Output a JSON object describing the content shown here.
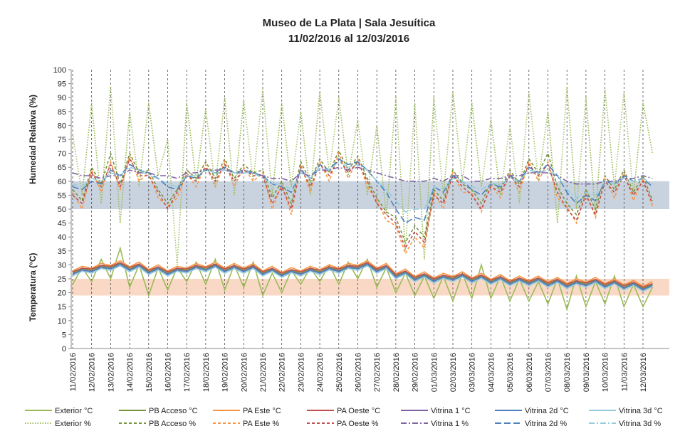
{
  "chart_data": {
    "type": "line",
    "title": "Museo de La Plata | Sala Jesuítica",
    "subtitle": "11/02/2016 al 12/03/2016",
    "y_labels": [
      "Humedad Relativa (%)",
      "Temperatura (°C)"
    ],
    "ylim": [
      0,
      100
    ],
    "yticks": [
      0,
      5,
      10,
      15,
      20,
      25,
      30,
      35,
      40,
      45,
      50,
      55,
      60,
      65,
      70,
      75,
      80,
      85,
      90,
      95,
      100
    ],
    "bands": [
      {
        "from": 50,
        "to": 60,
        "color": "#c9d3df"
      },
      {
        "from": 19,
        "to": 25,
        "color": "#f9d9c6"
      }
    ],
    "categories": [
      "11/02/2016",
      null,
      "12/02/2016",
      null,
      "13/02/2016",
      null,
      "14/02/2016",
      null,
      "15/02/2016",
      null,
      "16/02/2016",
      null,
      "17/02/2016",
      null,
      "18/02/2016",
      null,
      "19/02/2016",
      null,
      "20/02/2016",
      null,
      "21/02/2016",
      null,
      "22/02/2016",
      null,
      "23/02/2016",
      null,
      "24/02/2016",
      null,
      "25/02/2016",
      null,
      "26/02/2016",
      null,
      "27/02/2016",
      null,
      "28/02/2016",
      null,
      "29/02/2016",
      null,
      "01/03/2016",
      null,
      "02/03/2016",
      null,
      "03/03/2016",
      null,
      "04/03/2016",
      null,
      "05/03/2016",
      null,
      "06/03/2016",
      null,
      "07/03/2016",
      null,
      "08/03/2016",
      null,
      "09/03/2016",
      null,
      "10/03/2016",
      null,
      "11/03/2016",
      null,
      "12/03/2016",
      null
    ],
    "series": [
      {
        "name": "Exterior °C",
        "color": "#9bbb59",
        "dash": "none",
        "values": [
          23,
          29,
          24,
          32,
          25,
          36,
          22,
          30,
          19,
          29,
          21,
          29,
          24,
          31,
          23,
          32,
          21,
          30,
          22,
          31,
          19,
          27,
          20,
          28,
          23,
          29,
          24,
          30,
          23,
          31,
          25,
          32,
          22,
          29,
          20,
          27,
          19,
          26,
          18,
          26,
          17,
          27,
          18,
          30,
          18,
          26,
          17,
          25,
          17,
          24,
          16,
          25,
          14,
          26,
          15,
          24,
          16,
          26,
          15,
          23,
          15,
          22
        ]
      },
      {
        "name": "PB Acceso °C",
        "color": "#77933c",
        "dash": "none",
        "values": [
          27,
          28.5,
          28,
          29.5,
          29,
          30.5,
          28.5,
          30,
          27.5,
          29,
          27,
          28.5,
          28,
          29.5,
          28.5,
          30,
          28,
          29.5,
          28,
          29.5,
          27,
          28.5,
          26.5,
          28,
          27,
          28.5,
          27.5,
          29,
          28,
          29.5,
          29,
          30.5,
          28,
          29.5,
          26,
          27.5,
          25,
          26.5,
          24.5,
          26,
          25,
          26.5,
          24.5,
          26,
          24,
          25.5,
          23.5,
          25,
          23.5,
          25,
          23,
          24.5,
          22.5,
          24,
          23,
          24.5,
          22.5,
          24,
          22,
          23.5,
          21.5,
          23
        ]
      },
      {
        "name": "PA Este °C",
        "color": "#f79646",
        "dash": "none",
        "values": [
          27.8,
          29.5,
          28.8,
          30.5,
          29.8,
          31.5,
          29.3,
          31,
          28.3,
          30,
          27.8,
          29.5,
          28.8,
          30.5,
          29.3,
          31,
          28.8,
          30.5,
          28.8,
          30.5,
          27.8,
          29.5,
          27.3,
          29,
          27.8,
          29.5,
          28.3,
          30,
          28.8,
          30.5,
          29.8,
          31.5,
          28.8,
          30.5,
          26.8,
          28.5,
          25.8,
          27.5,
          25.3,
          27,
          25.8,
          27.5,
          25.3,
          27,
          24.8,
          26.5,
          24.3,
          26,
          24.3,
          26,
          23.8,
          25.5,
          23.3,
          25,
          23.8,
          25.5,
          23.3,
          25,
          22.8,
          24.5,
          22.3,
          24
        ]
      },
      {
        "name": "PA Oeste °C",
        "color": "#c0504d",
        "dash": "none",
        "values": [
          27.5,
          28.8,
          28.5,
          29.8,
          29.5,
          30.8,
          29,
          30.3,
          28,
          29.3,
          27.5,
          28.8,
          28.5,
          29.8,
          29,
          30.3,
          28.5,
          29.8,
          28.5,
          29.8,
          27.5,
          28.8,
          27,
          28.3,
          27.5,
          28.8,
          28,
          29.3,
          28.5,
          29.8,
          29.5,
          30.8,
          28.5,
          29.8,
          26.5,
          27.8,
          25.5,
          26.8,
          25,
          26.3,
          25.5,
          26.8,
          25,
          26.3,
          24.5,
          25.8,
          24,
          25.3,
          24,
          25.3,
          23.5,
          24.8,
          23,
          24.3,
          23.5,
          24.8,
          23,
          24.3,
          22.5,
          23.8,
          22,
          23.3
        ]
      },
      {
        "name": "Vitrina 1 °C",
        "color": "#8064a2",
        "dash": "none",
        "values": [
          26.8,
          27.8,
          27.8,
          28.8,
          28.8,
          29.8,
          28.3,
          29.3,
          27.3,
          28.3,
          26.8,
          27.8,
          27.8,
          28.8,
          28.3,
          29.3,
          27.8,
          28.8,
          27.8,
          28.8,
          26.8,
          27.8,
          26.3,
          27.3,
          26.8,
          27.8,
          27.3,
          28.3,
          27.8,
          28.8,
          28.8,
          29.8,
          27.8,
          28.8,
          25.8,
          26.8,
          24.8,
          25.8,
          24.3,
          25.3,
          24.8,
          25.8,
          24.3,
          25.3,
          23.8,
          24.8,
          23.3,
          24.3,
          23.3,
          24.3,
          22.8,
          23.8,
          22.3,
          23.3,
          22.8,
          23.8,
          22.3,
          23.3,
          21.8,
          22.8,
          21.3,
          22.3
        ]
      },
      {
        "name": "Vitrina 2d °C",
        "color": "#4f81bd",
        "dash": "none",
        "values": [
          26.5,
          28.3,
          27.5,
          29.3,
          28.5,
          30.3,
          28,
          29.8,
          27,
          28.8,
          26.5,
          28.3,
          27.5,
          29.3,
          28,
          29.8,
          27.5,
          29.3,
          27.5,
          29.3,
          26.5,
          28.3,
          26,
          27.8,
          26.5,
          28.3,
          27,
          28.8,
          27.5,
          29.3,
          28.5,
          30.3,
          27.5,
          29.3,
          25.5,
          27.3,
          24.5,
          26.3,
          24,
          25.8,
          24.5,
          26.3,
          24,
          25.8,
          23.5,
          25.3,
          23,
          24.8,
          23,
          24.8,
          22.5,
          24.3,
          22,
          23.8,
          22.5,
          24.3,
          22,
          23.8,
          21.5,
          23.3,
          21,
          22.8
        ]
      },
      {
        "name": "Vitrina 3d °C",
        "color": "#93cddd",
        "dash": "none",
        "values": [
          26,
          27.7,
          27,
          28.7,
          28,
          29.7,
          27.5,
          29.2,
          26.5,
          28.2,
          26,
          27.7,
          27,
          28.7,
          27.5,
          29.2,
          27,
          28.7,
          27,
          28.7,
          26,
          27.7,
          25.5,
          27.2,
          26,
          27.7,
          26.5,
          28.2,
          27,
          28.7,
          28,
          29.7,
          27,
          28.7,
          25,
          26.7,
          24,
          25.7,
          23.5,
          25.2,
          24,
          25.7,
          23.5,
          25.2,
          23,
          24.7,
          22.5,
          24.2,
          22.5,
          24.2,
          22,
          23.7,
          21.5,
          23.2,
          22,
          23.7,
          21.5,
          23.2,
          21,
          22.7,
          20.5,
          22.2
        ]
      },
      {
        "name": "Exterior %",
        "color": "#9bbb59",
        "dash": "1.5 2",
        "values": [
          77,
          55,
          88,
          52,
          94,
          45,
          85,
          58,
          88,
          62,
          75,
          30,
          88,
          60,
          86,
          58,
          90,
          55,
          89,
          60,
          93,
          55,
          88,
          58,
          85,
          55,
          92,
          63,
          90,
          62,
          82,
          55,
          80,
          48,
          90,
          35,
          88,
          32,
          90,
          55,
          92,
          60,
          88,
          58,
          82,
          55,
          80,
          52,
          92,
          60,
          85,
          45,
          94,
          50,
          90,
          48,
          93,
          58,
          92,
          55,
          88,
          70
        ]
      },
      {
        "name": "PB Acceso %",
        "color": "#77933c",
        "dash": "4 3",
        "values": [
          57,
          53,
          65,
          59,
          70,
          59,
          70,
          63,
          64,
          57,
          52,
          57,
          64,
          61,
          67,
          61,
          68,
          61,
          66,
          63,
          64,
          54,
          60,
          52,
          67,
          60,
          68,
          63,
          71,
          64,
          69,
          61,
          54,
          49,
          47,
          38,
          44,
          40,
          57,
          53,
          64,
          59,
          57,
          52,
          60,
          57,
          64,
          59,
          68,
          63,
          70,
          58,
          52,
          48,
          57,
          50,
          62,
          57,
          64,
          56,
          62,
          53
        ]
      },
      {
        "name": "PA Este %",
        "color": "#f79646",
        "dash": "4 3",
        "values": [
          56,
          50,
          64,
          56,
          67,
          57,
          69,
          60,
          63,
          54,
          51,
          54,
          63,
          58,
          66,
          58,
          67,
          58,
          65,
          60,
          63,
          50,
          59,
          48,
          66,
          56,
          67,
          60,
          70,
          61,
          68,
          58,
          53,
          46,
          44,
          34,
          40,
          36,
          56,
          50,
          63,
          56,
          56,
          49,
          59,
          54,
          63,
          56,
          67,
          60,
          67,
          54,
          51,
          45,
          56,
          47,
          61,
          54,
          63,
          53,
          61,
          51
        ]
      },
      {
        "name": "PA Oeste %",
        "color": "#c0504d",
        "dash": "4 3",
        "values": [
          55,
          52,
          63,
          58,
          66,
          58,
          68,
          62,
          62,
          56,
          50,
          56,
          62,
          60,
          65,
          60,
          66,
          60,
          64,
          62,
          62,
          52,
          58,
          50,
          65,
          58,
          66,
          62,
          68,
          63,
          67,
          60,
          52,
          48,
          45,
          36,
          42,
          38,
          55,
          52,
          62,
          58,
          55,
          50,
          58,
          56,
          62,
          58,
          66,
          62,
          66,
          56,
          50,
          46,
          55,
          48,
          60,
          56,
          62,
          55,
          60,
          52
        ]
      },
      {
        "name": "Vitrina 1 %",
        "color": "#8064a2",
        "dash": "8 3 2 3",
        "values": [
          63,
          62,
          62,
          61,
          62,
          62,
          64,
          63,
          63,
          62,
          62,
          61,
          63,
          63,
          64,
          64,
          64,
          63,
          63,
          63,
          62,
          61,
          61,
          60,
          63,
          62,
          64,
          64,
          65,
          64,
          65,
          64,
          63,
          62,
          61,
          60,
          60,
          60,
          61,
          60,
          62,
          62,
          60,
          60,
          61,
          61,
          62,
          62,
          63,
          63,
          63,
          62,
          60,
          59,
          59,
          59,
          60,
          60,
          61,
          61,
          62,
          61
        ]
      },
      {
        "name": "Vitrina 2d %",
        "color": "#4f81bd",
        "dash": "9 4",
        "values": [
          58,
          57,
          60,
          59,
          64,
          62,
          66,
          64,
          63,
          61,
          58,
          57,
          62,
          61,
          64,
          63,
          65,
          63,
          64,
          63,
          62,
          59,
          58,
          56,
          64,
          61,
          66,
          64,
          68,
          66,
          67,
          64,
          60,
          56,
          50,
          45,
          47,
          46,
          58,
          56,
          62,
          60,
          57,
          55,
          59,
          58,
          62,
          60,
          65,
          63,
          66,
          62,
          56,
          52,
          55,
          53,
          60,
          59,
          62,
          60,
          61,
          58
        ]
      },
      {
        "name": "Vitrina 3d %",
        "color": "#93cddd",
        "dash": "8 3 2 3",
        "values": [
          59,
          58,
          61,
          60,
          63,
          62,
          65,
          64,
          62,
          61,
          59,
          58,
          62,
          62,
          64,
          63,
          64,
          63,
          63,
          63,
          61,
          59,
          59,
          57,
          63,
          61,
          65,
          64,
          67,
          65,
          66,
          64,
          60,
          57,
          53,
          49,
          50,
          50,
          58,
          57,
          61,
          60,
          58,
          57,
          59,
          59,
          61,
          60,
          64,
          63,
          64,
          62,
          57,
          54,
          56,
          55,
          60,
          59,
          61,
          60,
          61,
          59
        ]
      }
    ]
  }
}
